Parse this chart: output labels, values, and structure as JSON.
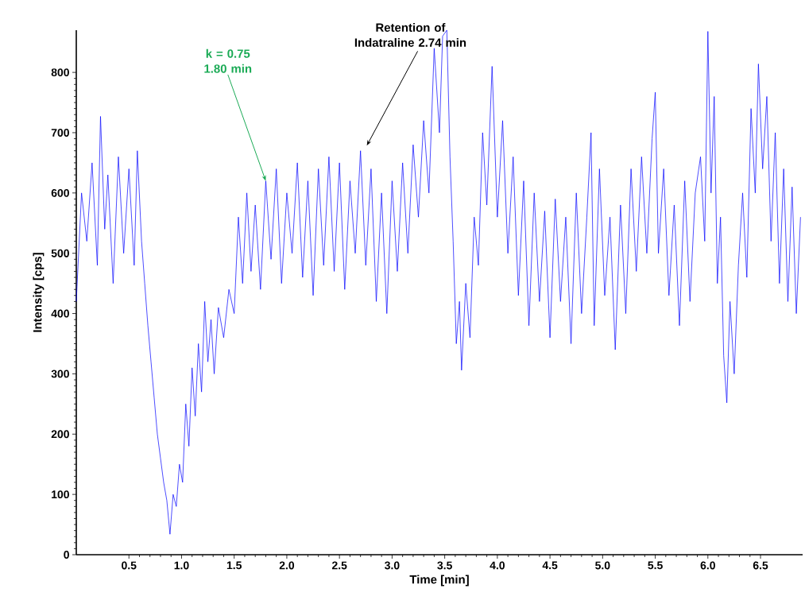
{
  "chart_data": {
    "type": "line",
    "xlabel": "Time [min]",
    "ylabel": "Intensity [cps]",
    "xlim": [
      0,
      6.9
    ],
    "ylim": [
      0,
      870
    ],
    "xticks": [
      0.5,
      {
        "value": 1,
        "label": "1.0"
      },
      1.5,
      {
        "value": 2,
        "label": "2.0"
      },
      2.5,
      {
        "value": 3,
        "label": "3.0"
      },
      3.5,
      {
        "value": 4,
        "label": "4.0"
      },
      4.5,
      {
        "value": 5,
        "label": "5.0"
      },
      5.5,
      {
        "value": 6,
        "label": "6.0"
      },
      6.5
    ],
    "yticks": [
      0,
      100,
      200,
      300,
      400,
      500,
      600,
      700,
      800
    ],
    "grid": false,
    "marker": "none",
    "line_style": "solid",
    "annotations": [
      {
        "text": "k = 0.75 1.80 min",
        "x": 1.8,
        "y": 620
      },
      "Retention of Indatraline 2.74 min"
    ],
    "series": [
      {
        "color": "#0000ff",
        "x": [
          0.0,
          0.05,
          0.1,
          0.15,
          0.2,
          0.23,
          0.27,
          0.3,
          0.35,
          0.4,
          0.45,
          0.5,
          0.55,
          0.58,
          0.62,
          0.65,
          0.68,
          0.71,
          0.74,
          0.77,
          0.8,
          0.83,
          0.86,
          0.89,
          0.92,
          0.95,
          0.98,
          1.01,
          1.04,
          1.07,
          1.1,
          1.13,
          1.16,
          1.19,
          1.22,
          1.25,
          1.28,
          1.31,
          1.35,
          1.4,
          1.45,
          1.5,
          1.54,
          1.58,
          1.62,
          1.66,
          1.7,
          1.75,
          1.8,
          1.85,
          1.9,
          1.95,
          2.0,
          2.05,
          2.1,
          2.15,
          2.2,
          2.25,
          2.3,
          2.35,
          2.4,
          2.45,
          2.5,
          2.55,
          2.6,
          2.65,
          2.7,
          2.75,
          2.8,
          2.85,
          2.9,
          2.95,
          3.0,
          3.05,
          3.1,
          3.15,
          3.2,
          3.25,
          3.3,
          3.35,
          3.4,
          3.45,
          3.48,
          3.52,
          3.55,
          3.58,
          3.61,
          3.64,
          3.66,
          3.7,
          3.74,
          3.78,
          3.82,
          3.86,
          3.9,
          3.95,
          4.0,
          4.05,
          4.1,
          4.15,
          4.2,
          4.25,
          4.3,
          4.35,
          4.4,
          4.45,
          4.5,
          4.55,
          4.6,
          4.65,
          4.7,
          4.75,
          4.8,
          4.85,
          4.89,
          4.92,
          4.97,
          5.02,
          5.07,
          5.12,
          5.17,
          5.22,
          5.27,
          5.32,
          5.37,
          5.42,
          5.47,
          5.5,
          5.53,
          5.58,
          5.63,
          5.68,
          5.73,
          5.78,
          5.83,
          5.88,
          5.93,
          5.97,
          6.0,
          6.03,
          6.06,
          6.09,
          6.12,
          6.15,
          6.18,
          6.21,
          6.25,
          6.29,
          6.33,
          6.37,
          6.41,
          6.45,
          6.48,
          6.52,
          6.56,
          6.6,
          6.64,
          6.68,
          6.72,
          6.76,
          6.8,
          6.84,
          6.88
        ],
        "values": [
          420,
          600,
          520,
          650,
          480,
          727,
          540,
          630,
          450,
          660,
          500,
          640,
          480,
          670,
          520,
          450,
          380,
          320,
          260,
          200,
          160,
          120,
          90,
          34,
          100,
          80,
          150,
          120,
          250,
          180,
          310,
          230,
          350,
          270,
          420,
          320,
          390,
          300,
          410,
          360,
          440,
          400,
          560,
          450,
          600,
          470,
          580,
          440,
          620,
          490,
          640,
          450,
          600,
          500,
          650,
          460,
          620,
          430,
          640,
          480,
          660,
          470,
          650,
          440,
          620,
          500,
          670,
          480,
          640,
          420,
          600,
          400,
          620,
          470,
          650,
          500,
          680,
          560,
          720,
          600,
          840,
          700,
          860,
          870,
          660,
          520,
          350,
          420,
          306,
          450,
          360,
          560,
          480,
          700,
          580,
          810,
          560,
          720,
          500,
          660,
          430,
          620,
          380,
          600,
          420,
          570,
          360,
          590,
          420,
          560,
          350,
          600,
          400,
          560,
          700,
          380,
          640,
          430,
          560,
          340,
          580,
          400,
          640,
          470,
          660,
          500,
          690,
          767,
          500,
          640,
          430,
          580,
          380,
          620,
          420,
          600,
          660,
          520,
          868,
          600,
          760,
          450,
          560,
          330,
          252,
          420,
          300,
          480,
          600,
          460,
          740,
          600,
          814,
          640,
          760,
          520,
          700,
          450,
          640,
          420,
          610,
          400,
          560
        ]
      }
    ]
  }
}
